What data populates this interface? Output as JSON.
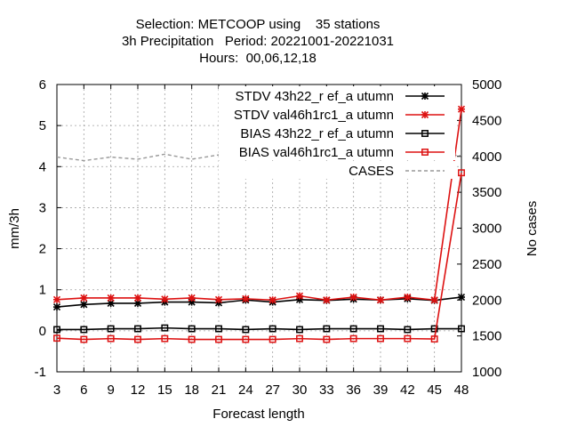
{
  "chart_data": {
    "type": "line",
    "title": [
      "Selection: METCOOP using    35 stations",
      "3h Precipitation   Period: 20221001-20221031",
      "Hours:  00,06,12,18"
    ],
    "xlabel": "Forecast length",
    "ylabel": "mm/3h",
    "y2label": "No cases",
    "x": [
      3,
      6,
      9,
      12,
      15,
      18,
      21,
      24,
      27,
      30,
      33,
      36,
      39,
      42,
      45,
      48
    ],
    "xlim": [
      3,
      48
    ],
    "ylim": [
      -1,
      6
    ],
    "y2lim": [
      1000,
      5000
    ],
    "xticks": [
      "3",
      "6",
      "9",
      "12",
      "15",
      "18",
      "21",
      "24",
      "27",
      "30",
      "33",
      "36",
      "39",
      "42",
      "45",
      "48"
    ],
    "yticks": [
      "-1",
      "0",
      "1",
      "2",
      "3",
      "4",
      "5",
      "6"
    ],
    "y2ticks": [
      "1000",
      "1500",
      "2000",
      "2500",
      "3000",
      "3500",
      "4000",
      "4500",
      "5000"
    ],
    "grid": true,
    "legend_position": "top-right",
    "series": [
      {
        "name": "STDV 43h22_r ef_a utumn",
        "color": "#000000",
        "marker": "star",
        "dash": "solid",
        "axis": "left",
        "values": [
          0.58,
          0.64,
          0.67,
          0.67,
          0.7,
          0.7,
          0.68,
          0.75,
          0.7,
          0.76,
          0.74,
          0.77,
          0.75,
          0.78,
          0.74,
          0.82
        ]
      },
      {
        "name": "STDV val46h1rc1_a utumn",
        "color": "#dd1111",
        "marker": "star",
        "dash": "solid",
        "axis": "left",
        "values": [
          0.76,
          0.8,
          0.8,
          0.8,
          0.77,
          0.8,
          0.76,
          0.78,
          0.75,
          0.85,
          0.75,
          0.82,
          0.75,
          0.82,
          0.75,
          5.4
        ]
      },
      {
        "name": "BIAS 43h22_r ef_a utumn",
        "color": "#000000",
        "marker": "square",
        "dash": "solid",
        "axis": "left",
        "values": [
          0.03,
          0.03,
          0.05,
          0.05,
          0.07,
          0.05,
          0.05,
          0.03,
          0.05,
          0.03,
          0.05,
          0.05,
          0.05,
          0.03,
          0.05,
          0.05
        ]
      },
      {
        "name": "BIAS val46h1rc1_a utumn",
        "color": "#dd1111",
        "marker": "square",
        "dash": "solid",
        "axis": "left",
        "values": [
          -0.18,
          -0.21,
          -0.19,
          -0.21,
          -0.19,
          -0.21,
          -0.21,
          -0.21,
          -0.21,
          -0.19,
          -0.21,
          -0.19,
          -0.19,
          -0.19,
          -0.2,
          3.85
        ]
      },
      {
        "name": "CASES",
        "color": "#999999",
        "marker": "none",
        "dash": "dashed",
        "axis": "right",
        "values": [
          3990,
          3940,
          3990,
          3960,
          4030,
          3960,
          4020,
          4010,
          4030,
          4010,
          4030,
          4030,
          4010,
          4000,
          4030,
          4010
        ]
      }
    ]
  }
}
